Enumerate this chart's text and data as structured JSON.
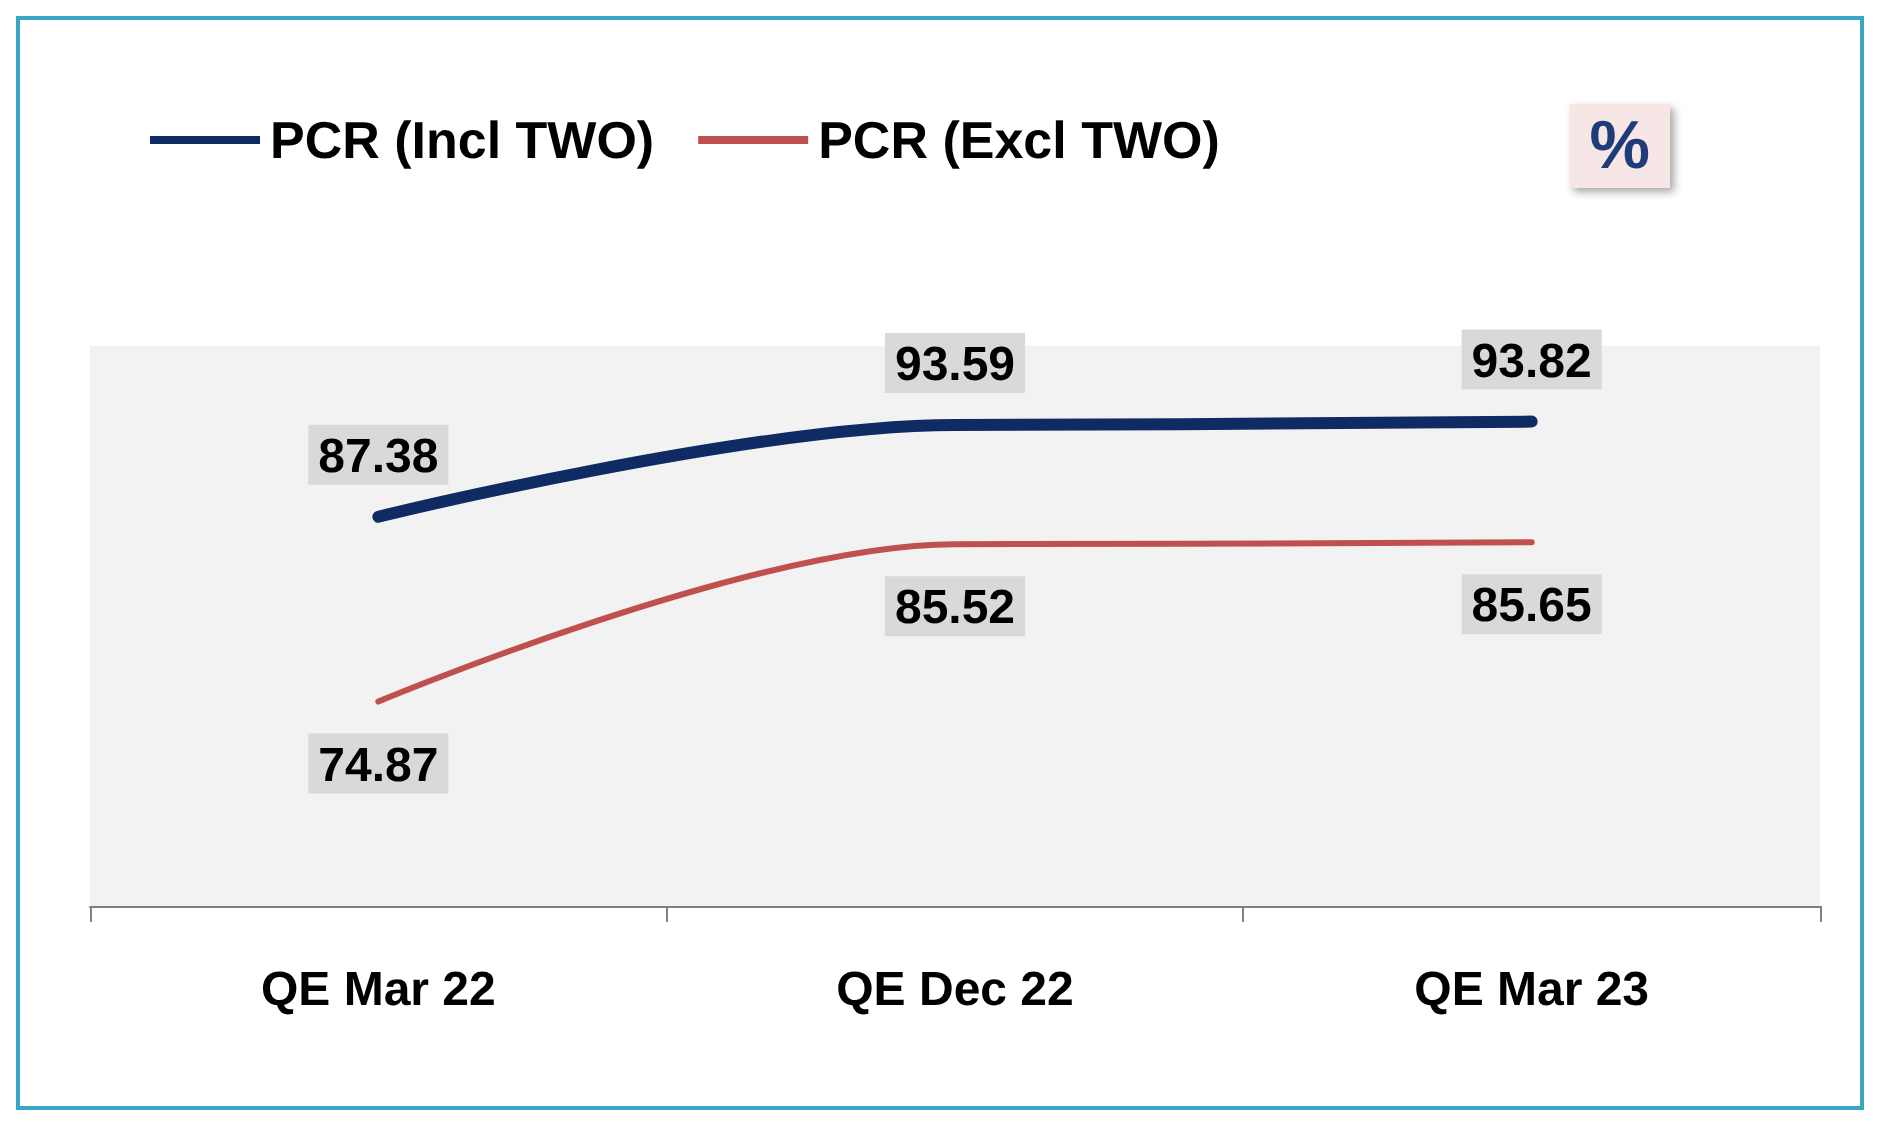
{
  "chart_data": {
    "type": "line",
    "categories": [
      "QE Mar 22",
      "QE Dec 22",
      "QE Mar 23"
    ],
    "series": [
      {
        "name": "PCR (Incl TWO)",
        "color": "#0e2b63",
        "values": [
          87.38,
          93.59,
          93.82
        ]
      },
      {
        "name": "PCR (Excl TWO)",
        "color": "#c0504d",
        "values": [
          74.87,
          85.52,
          85.65
        ]
      }
    ],
    "data_labels": true,
    "legend": "top left",
    "marker": "none",
    "line_style": "solid",
    "annotations": [
      "%"
    ]
  }
}
